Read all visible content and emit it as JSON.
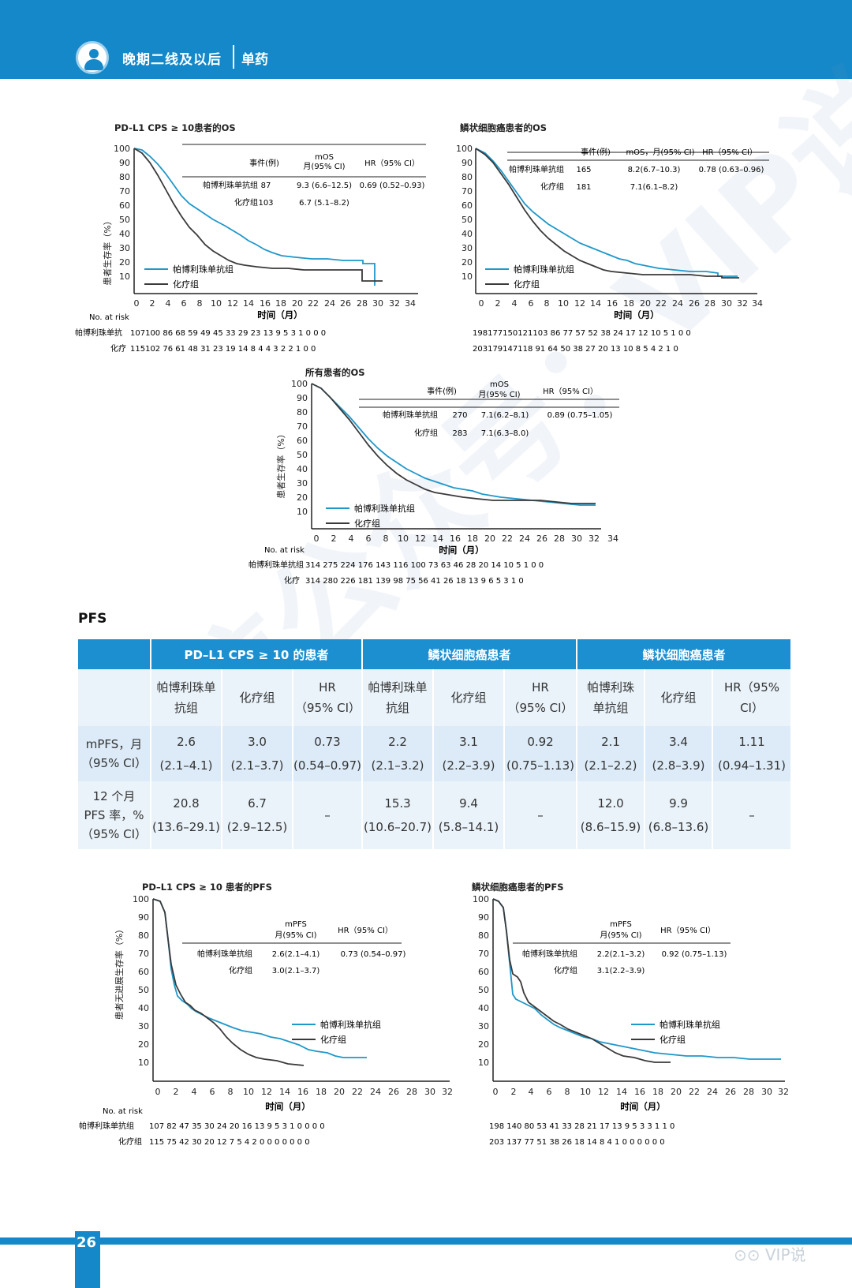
{
  "header": {
    "title": "晚期二线及以后",
    "subtitle": "单药"
  },
  "os_cps10": {
    "title": "PD-L1 CPS ≥ 10患者的OS",
    "ylabel": "患者生存率（%）",
    "xlabel": "时间（月）",
    "yticks": [
      "100",
      "90",
      "80",
      "70",
      "60",
      "50",
      "40",
      "30",
      "20",
      "10"
    ],
    "xticks": [
      "0",
      "2",
      "4",
      "6",
      "8",
      "10",
      "12",
      "14",
      "16",
      "18",
      "20",
      "22",
      "24",
      "26",
      "28",
      "30",
      "32",
      "34"
    ],
    "legend": [
      "帕博利珠单抗组",
      "化疗组"
    ],
    "col_events": "事件(例)",
    "col_median_1": "mOS",
    "col_median_2": "月(95% CI)",
    "col_hr": "HR（95% CI）",
    "rows": [
      {
        "label": "帕博利珠单抗组",
        "events": "87",
        "median": "9.3 (6.6–12.5)",
        "hr": "0.69 (0.52–0.93)"
      },
      {
        "label": "化疗组",
        "events": "103",
        "median": "6.7 (5.1–8.2)",
        "hr": ""
      }
    ],
    "risk_label": "No. at risk",
    "risk_rows": [
      {
        "label": "帕博利珠单抗",
        "values": "107100 86  68  59  49  45  33  29  23  13   9    5    3    1    0    0    0"
      },
      {
        "label": "化疗",
        "values": "115102 76  61  48  31  23  19  14   8    4    4    3    2    2    1    0    0"
      }
    ]
  },
  "os_squamous": {
    "title": "鳞状细胞癌患者的OS",
    "xlabel": "时间（月）",
    "yticks": [
      "100",
      "90",
      "80",
      "70",
      "60",
      "50",
      "40",
      "30",
      "20",
      "10"
    ],
    "xticks": [
      "0",
      "2",
      "4",
      "6",
      "8",
      "10",
      "12",
      "14",
      "16",
      "18",
      "20",
      "22",
      "24",
      "26",
      "28",
      "30",
      "32",
      "34"
    ],
    "legend": [
      "帕博利珠单抗组",
      "化疗组"
    ],
    "col_events": "事件(例)",
    "col_median": "mOS，月(95% CI)",
    "col_hr": "HR（95% CI）",
    "rows": [
      {
        "label": "帕博利珠单抗组",
        "events": "165",
        "median": "8.2(6.7–10.3)",
        "hr": "0.78 (0.63–0.96)"
      },
      {
        "label": "化疗组",
        "events": "181",
        "median": "7.1(6.1–8.2)",
        "hr": ""
      }
    ],
    "risk_rows": [
      {
        "values": "198177150121103 86  77  57  52  38  24  17  12  10   5    1    0    0"
      },
      {
        "values": "203179147118 91  64  50  38  27  20  13  10   8    5    4    2    1    0"
      }
    ]
  },
  "os_all": {
    "title": "所有患者的OS",
    "ylabel": "患者生存率（%）",
    "xlabel": "时间（月）",
    "yticks": [
      "100",
      "90",
      "80",
      "70",
      "60",
      "50",
      "40",
      "30",
      "20",
      "10"
    ],
    "xticks": [
      "0",
      "2",
      "4",
      "6",
      "8",
      "10",
      "12",
      "14",
      "16",
      "18",
      "20",
      "22",
      "24",
      "26",
      "28",
      "30",
      "32",
      "34"
    ],
    "legend": [
      "帕博利珠单抗组",
      "化疗组"
    ],
    "col_events": "事件(例)",
    "col_median_1": "mOS",
    "col_median_2": "月(95% CI)",
    "col_hr": "HR（95% CI）",
    "rows": [
      {
        "label": "帕博利珠单抗组",
        "events": "270",
        "median": "7.1(6.2–8.1)",
        "hr": "0.89 (0.75–1.05)"
      },
      {
        "label": "化疗组",
        "events": "283",
        "median": "7.1(6.3–8.0)",
        "hr": ""
      }
    ],
    "risk_label": "No. at risk",
    "risk_rows": [
      {
        "label": "帕博利珠单抗组",
        "values": "314 275 224 176 143 116 100  73   63   46   28   20   14   10    5    1    0    0"
      },
      {
        "label": "化疗",
        "values": "314 280 226 181 139  98   75   56   41   26   18   13    9    6    5    3    1    0"
      }
    ]
  },
  "pfs_label": "PFS",
  "pfs_table": {
    "groups": [
      "PD–L1 CPS ≥ 10 的患者",
      "鳞状细胞癌患者",
      "鳞状细胞癌患者"
    ],
    "subheaders": [
      [
        "帕博利珠单",
        "抗组"
      ],
      [
        "化疗组",
        ""
      ],
      [
        "HR",
        "（95% CI）"
      ],
      [
        "帕博利珠单",
        "抗组"
      ],
      [
        "化疗组",
        ""
      ],
      [
        "HR",
        "（95% CI）"
      ],
      [
        "帕博利珠",
        "单抗组"
      ],
      [
        "化疗组",
        ""
      ],
      [
        "HR（95%",
        "CI）"
      ]
    ],
    "row1_head": [
      "mPFS，月",
      "（95% CI）"
    ],
    "row1": [
      [
        "2.6",
        "(2.1–4.1)"
      ],
      [
        "3.0",
        "(2.1–3.7)"
      ],
      [
        "0.73",
        "(0.54–0.97)"
      ],
      [
        "2.2",
        "(2.1–3.2)"
      ],
      [
        "3.1",
        "(2.2–3.9)"
      ],
      [
        "0.92",
        "(0.75–1.13)"
      ],
      [
        "2.1",
        "(2.1–2.2)"
      ],
      [
        "3.4",
        "(2.8–3.9)"
      ],
      [
        "1.11",
        "(0.94–1.31)"
      ]
    ],
    "row2_head": [
      "12 个月",
      "PFS 率，%",
      "（95% CI）"
    ],
    "row2": [
      [
        "20.8",
        "(13.6–29.1)"
      ],
      [
        "6.7",
        "(2.9–12.5)"
      ],
      [
        "–",
        ""
      ],
      [
        "15.3",
        "(10.6–20.7)"
      ],
      [
        "9.4",
        "(5.8–14.1)"
      ],
      [
        "–",
        ""
      ],
      [
        "12.0",
        "(8.6–15.9)"
      ],
      [
        "9.9",
        "(6.8–13.6)"
      ],
      [
        "–",
        ""
      ]
    ]
  },
  "pfs_cps10": {
    "title": "PD–L1 CPS ≥ 10 患者的PFS",
    "ylabel": "患者无进展生存率（%）",
    "xlabel": "时间（月）",
    "yticks": [
      "100",
      "90",
      "80",
      "70",
      "60",
      "50",
      "40",
      "30",
      "20",
      "10"
    ],
    "xticks": [
      "0",
      "2",
      "4",
      "6",
      "8",
      "10",
      "12",
      "14",
      "16",
      "18",
      "20",
      "22",
      "24",
      "26",
      "28",
      "30",
      "32"
    ],
    "legend": [
      "帕博利珠单抗组",
      "化疗组"
    ],
    "col_median_1": "mPFS",
    "col_median_2": "月(95% CI)",
    "col_hr": "HR（95% CI）",
    "rows": [
      {
        "label": "帕博利珠单抗组",
        "median": "2.6(2.1–4.1)",
        "hr": "0.73 (0.54–0.97)"
      },
      {
        "label": "化疗组",
        "median": "3.0(2.1–3.7)",
        "hr": ""
      }
    ],
    "risk_label": "No. at risk",
    "risk_rows": [
      {
        "label": "帕博利珠单抗组",
        "values": "107  82   47   35   30   24   20   16   13    9    5    3    1    0    0    0    0"
      },
      {
        "label": "化疗组",
        "values": "115  75   42   30   20   12    7    5    4    2    0    0    0    0    0    0    0"
      }
    ]
  },
  "pfs_squamous": {
    "title": "鳞状细胞癌患者的PFS",
    "xlabel": "时间（月）",
    "yticks": [
      "100",
      "90",
      "80",
      "70",
      "60",
      "50",
      "40",
      "30",
      "20",
      "10"
    ],
    "xticks": [
      "0",
      "2",
      "4",
      "6",
      "8",
      "10",
      "12",
      "14",
      "16",
      "18",
      "20",
      "22",
      "24",
      "26",
      "28",
      "30",
      "32"
    ],
    "legend": [
      "帕博利珠单抗组",
      "化疗组"
    ],
    "col_median_1": "mPFS",
    "col_median_2": "月(95% CI)",
    "col_hr": "HR（95% CI）",
    "rows": [
      {
        "label": "帕博利珠单抗组",
        "median": "2.2(2.1–3.2)",
        "hr": "0.92 (0.75–1.13)"
      },
      {
        "label": "化疗组",
        "median": "3.1(2.2–3.9)",
        "hr": ""
      }
    ],
    "risk_rows": [
      {
        "values": "198 140  80   53   41   33   28   21   17   13    9    5    3    3    1    1    0"
      },
      {
        "values": "203 137  77   51   38   26   18   14    8    4    1    0    0    0    0    0    0"
      }
    ]
  },
  "page_number": "26",
  "wechat_label": "VIP说",
  "watermark": "微信公众号：VIP说",
  "colors": {
    "brand_blue": "#1488c8",
    "pembro_line": "#1f97c9",
    "chemo_line": "#3a3a3a"
  }
}
